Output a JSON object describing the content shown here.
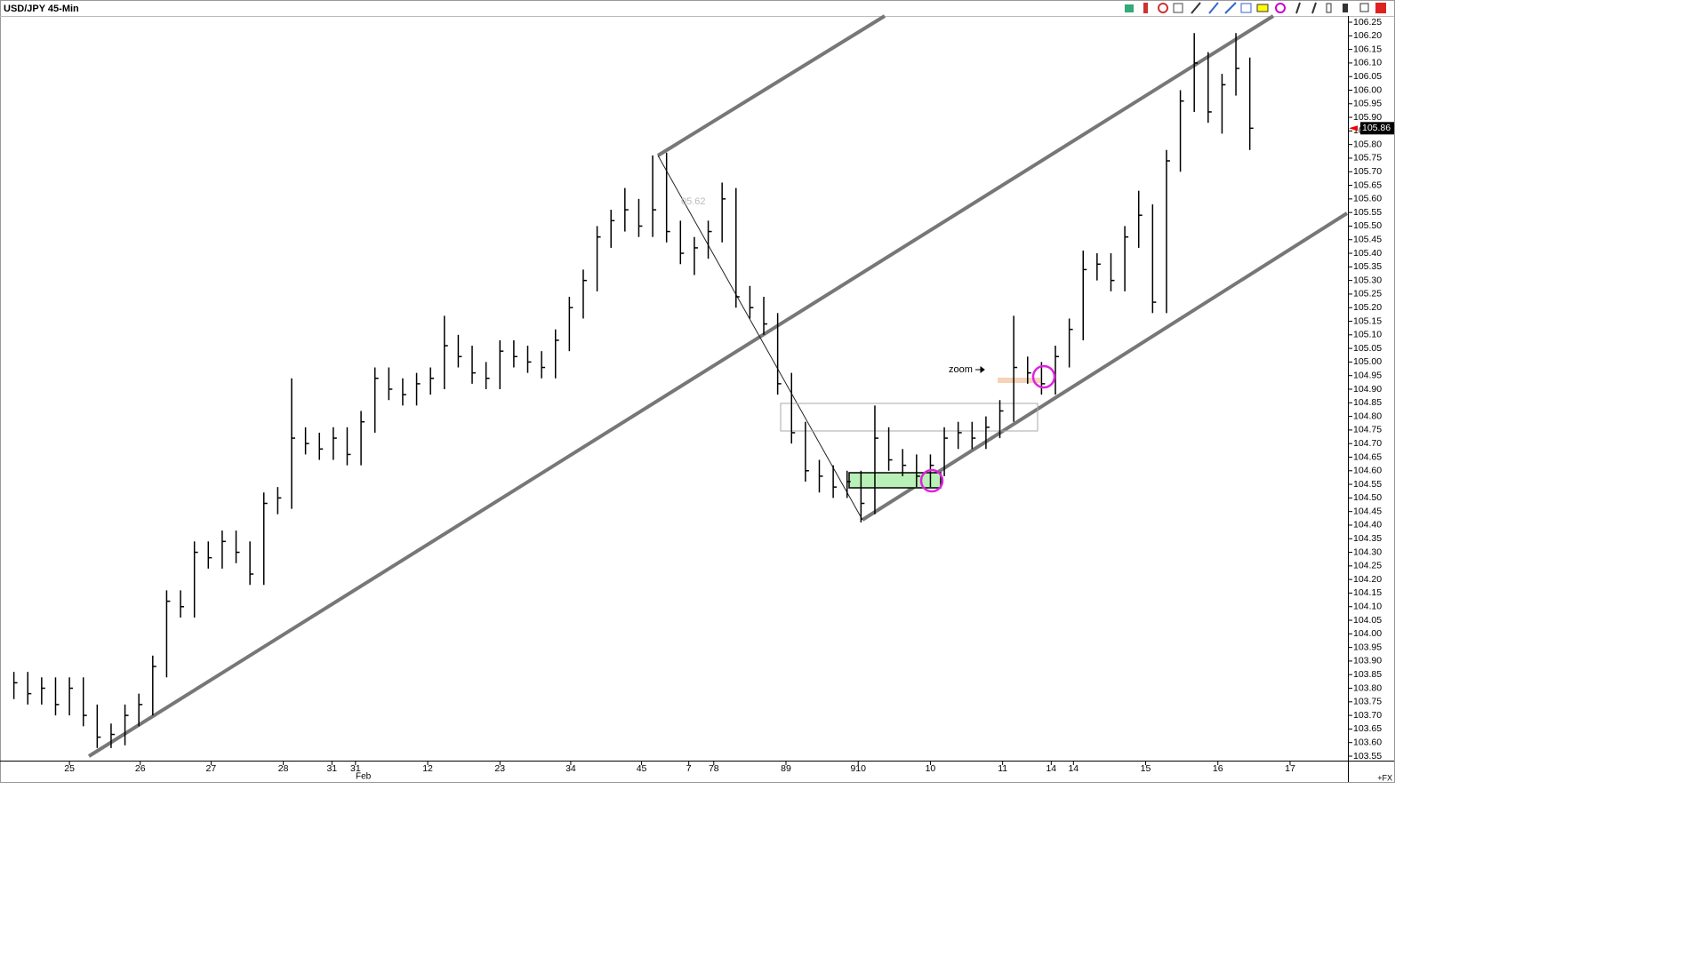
{
  "chart_data": {
    "type": "ohlc",
    "title": "USD/JPY 45-Min",
    "color": "#000000",
    "high": [
      103.86,
      103.86,
      103.84,
      103.84,
      103.84,
      103.84,
      103.74,
      103.67,
      103.74,
      103.78,
      103.92,
      104.16,
      104.16,
      104.34,
      104.34,
      104.38,
      104.38,
      104.34,
      104.52,
      104.54,
      104.94,
      104.76,
      104.74,
      104.76,
      104.76,
      104.82,
      104.98,
      104.98,
      104.94,
      104.96,
      104.98,
      105.17,
      105.1,
      105.06,
      105.0,
      105.08,
      105.08,
      105.06,
      105.04,
      105.12,
      105.24,
      105.34,
      105.5,
      105.56,
      105.64,
      105.6,
      105.76,
      105.77,
      105.52,
      105.46,
      105.52,
      105.66,
      105.64,
      105.28,
      105.24,
      105.18,
      104.96,
      104.78,
      104.64,
      104.62,
      104.6,
      104.6,
      104.84,
      104.76,
      104.68,
      104.66,
      104.66,
      104.76,
      104.78,
      104.78,
      104.8,
      104.86,
      105.17,
      105.02,
      105.0,
      105.06,
      105.16,
      105.41,
      105.4,
      105.4,
      105.5,
      105.63,
      105.58,
      105.78,
      106.0,
      106.21,
      106.14,
      106.06,
      106.21,
      106.12
    ],
    "low": [
      103.76,
      103.74,
      103.74,
      103.7,
      103.7,
      103.66,
      103.58,
      103.58,
      103.59,
      103.66,
      103.7,
      103.84,
      104.06,
      104.06,
      104.24,
      104.24,
      104.26,
      104.18,
      104.18,
      104.44,
      104.46,
      104.66,
      104.64,
      104.64,
      104.62,
      104.62,
      104.74,
      104.86,
      104.84,
      104.84,
      104.88,
      104.9,
      104.98,
      104.92,
      104.9,
      104.9,
      104.98,
      104.96,
      104.94,
      104.94,
      105.04,
      105.16,
      105.26,
      105.42,
      105.48,
      105.46,
      105.46,
      105.44,
      105.36,
      105.32,
      105.38,
      105.44,
      105.2,
      105.16,
      105.1,
      104.88,
      104.7,
      104.56,
      104.52,
      104.5,
      104.5,
      104.41,
      104.44,
      104.6,
      104.58,
      104.54,
      104.54,
      104.58,
      104.68,
      104.68,
      104.68,
      104.72,
      104.78,
      104.92,
      104.88,
      104.88,
      104.98,
      105.08,
      105.3,
      105.26,
      105.26,
      105.42,
      105.18,
      105.18,
      105.7,
      105.92,
      105.88,
      105.84,
      105.98,
      105.78
    ],
    "close": [
      103.82,
      103.78,
      103.8,
      103.74,
      103.8,
      103.7,
      103.62,
      103.63,
      103.7,
      103.74,
      103.88,
      104.12,
      104.1,
      104.3,
      104.28,
      104.34,
      104.3,
      104.22,
      104.48,
      104.5,
      104.72,
      104.7,
      104.68,
      104.72,
      104.66,
      104.78,
      104.94,
      104.9,
      104.88,
      104.92,
      104.94,
      105.06,
      105.02,
      104.96,
      104.94,
      105.04,
      105.02,
      105.0,
      104.98,
      105.08,
      105.2,
      105.3,
      105.46,
      105.52,
      105.56,
      105.5,
      105.56,
      105.48,
      105.4,
      105.42,
      105.48,
      105.6,
      105.24,
      105.2,
      105.14,
      104.92,
      104.74,
      104.6,
      104.58,
      104.54,
      104.56,
      104.48,
      104.72,
      104.64,
      104.62,
      104.58,
      104.62,
      104.72,
      104.74,
      104.72,
      104.76,
      104.82,
      104.98,
      104.96,
      104.92,
      105.02,
      105.12,
      105.34,
      105.36,
      105.3,
      105.46,
      105.54,
      105.22,
      105.74,
      105.96,
      106.1,
      105.92,
      106.02,
      106.08,
      105.86
    ],
    "last_price": 105.86,
    "xlim": [
      -1,
      96
    ],
    "xticks": [
      {
        "value": 4,
        "label": "25"
      },
      {
        "value": 9.1,
        "label": "26"
      },
      {
        "value": 14.2,
        "label": "27"
      },
      {
        "value": 19.4,
        "label": "28"
      },
      {
        "value": 22.9,
        "label": "31"
      },
      {
        "value": 24.6,
        "label": "31"
      },
      {
        "value": 29.8,
        "label": "12"
      },
      {
        "value": 35,
        "label": "23"
      },
      {
        "value": 40.1,
        "label": "34"
      },
      {
        "value": 45.2,
        "label": "45"
      },
      {
        "value": 48.6,
        "label": "7"
      },
      {
        "value": 50.4,
        "label": "78"
      },
      {
        "value": 55.6,
        "label": "89"
      },
      {
        "value": 60.8,
        "label": "910"
      },
      {
        "value": 66,
        "label": "10"
      },
      {
        "value": 71.2,
        "label": "11"
      },
      {
        "value": 74.7,
        "label": "14"
      },
      {
        "value": 76.3,
        "label": "14"
      },
      {
        "value": 81.5,
        "label": "15"
      },
      {
        "value": 86.7,
        "label": "16"
      },
      {
        "value": 91.9,
        "label": "17"
      }
    ],
    "x_sublabel": "Feb",
    "ylim": [
      103.55,
      106.25
    ],
    "yticks": [
      106.25,
      {
        "value": 106.2,
        "label": "106.20"
      },
      106.15,
      {
        "value": 106.1,
        "label": "106.10"
      },
      106.05,
      {
        "value": 106,
        "label": "106.00"
      },
      105.95,
      {
        "value": 105.9,
        "label": "105.90"
      },
      105.85,
      {
        "value": 105.8,
        "label": "105.80"
      },
      105.75,
      {
        "value": 105.7,
        "label": "105.70"
      },
      105.65,
      {
        "value": 105.6,
        "label": "105.60"
      },
      105.55,
      {
        "value": 105.5,
        "label": "105.50"
      },
      105.45,
      {
        "value": 105.4,
        "label": "105.40"
      },
      105.35,
      {
        "value": 105.3,
        "label": "105.30"
      },
      105.25,
      {
        "value": 105.2,
        "label": "105.20"
      },
      105.15,
      {
        "value": 105.1,
        "label": "105.10"
      },
      105.05,
      {
        "value": 105,
        "label": "105.00"
      },
      104.95,
      {
        "value": 104.9,
        "label": "104.90"
      },
      104.85,
      {
        "value": 104.8,
        "label": "104.80"
      },
      104.75,
      {
        "value": 104.7,
        "label": "104.70"
      },
      104.65,
      {
        "value": 104.6,
        "label": "104.60"
      },
      104.55,
      {
        "value": 104.5,
        "label": "104.50"
      },
      104.45,
      {
        "value": 104.4,
        "label": "104.40"
      },
      104.35,
      {
        "value": 104.3,
        "label": "104.30"
      },
      104.25,
      {
        "value": 104.2,
        "label": "104.20"
      },
      104.15,
      {
        "value": 104.1,
        "label": "104.10"
      },
      104.05,
      {
        "value": 104,
        "label": "104.00"
      },
      103.95,
      {
        "value": 103.9,
        "label": "103.90"
      },
      103.85,
      {
        "value": 103.8,
        "label": "103.80"
      },
      103.75,
      {
        "value": 103.7,
        "label": "103.70"
      },
      103.65,
      {
        "value": 103.6,
        "label": "103.60"
      },
      103.55
    ],
    "annotations": [
      "zoom",
      "05.62"
    ],
    "corner_label": "+FX"
  }
}
